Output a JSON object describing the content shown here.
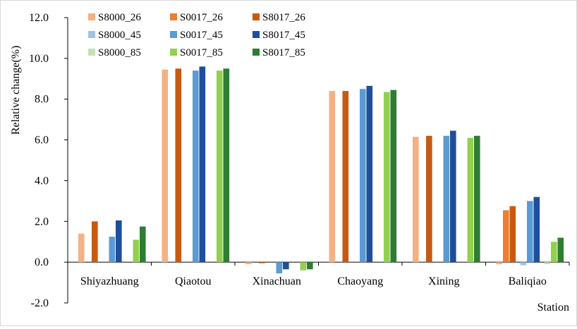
{
  "chart_data": {
    "type": "bar",
    "title": "",
    "xlabel": "Station",
    "ylabel": "Relative change(%)",
    "ylim": [
      -2.0,
      12.0
    ],
    "yticks": [
      "-2.0",
      "0.0",
      "2.0",
      "4.0",
      "6.0",
      "8.0",
      "10.0",
      "12.0"
    ],
    "ytick_values": [
      -2,
      0,
      2,
      4,
      6,
      8,
      10,
      12
    ],
    "grid": false,
    "legend_position": "top-left",
    "categories": [
      "Shiyazhuang",
      "Qiaotou",
      "Xinachuan",
      "Chaoyang",
      "Xining",
      "Baliqiao"
    ],
    "series": [
      {
        "name": "S8000_26",
        "color": "#F4B183",
        "values": [
          1.4,
          9.45,
          -0.1,
          8.4,
          6.15,
          -0.1
        ]
      },
      {
        "name": "S0017_26",
        "color": "#ED7D31",
        "values": [
          0,
          0,
          0,
          0,
          0,
          2.55
        ]
      },
      {
        "name": "S8017_26",
        "color": "#C55A11",
        "values": [
          2.0,
          9.5,
          -0.05,
          8.4,
          6.2,
          2.75
        ]
      },
      {
        "name": "S8000_45",
        "color": "#9DC3E6",
        "values": [
          0,
          0,
          0,
          0,
          0,
          -0.15
        ]
      },
      {
        "name": "S0017_45",
        "color": "#5B9BD5",
        "values": [
          1.25,
          9.4,
          -0.55,
          8.5,
          6.2,
          3.0
        ]
      },
      {
        "name": "S8017_45",
        "color": "#1F4E9A",
        "values": [
          2.05,
          9.6,
          -0.35,
          8.65,
          6.45,
          3.2
        ]
      },
      {
        "name": "S8000_85",
        "color": "#C5E0B4",
        "values": [
          0,
          0,
          0,
          0,
          0,
          -0.1
        ]
      },
      {
        "name": "S0017_85",
        "color": "#92D050",
        "values": [
          1.1,
          9.4,
          -0.4,
          8.35,
          6.1,
          1.0
        ]
      },
      {
        "name": "S8017_85",
        "color": "#2E7D32",
        "values": [
          1.75,
          9.5,
          -0.35,
          8.45,
          6.2,
          1.2
        ]
      }
    ]
  }
}
